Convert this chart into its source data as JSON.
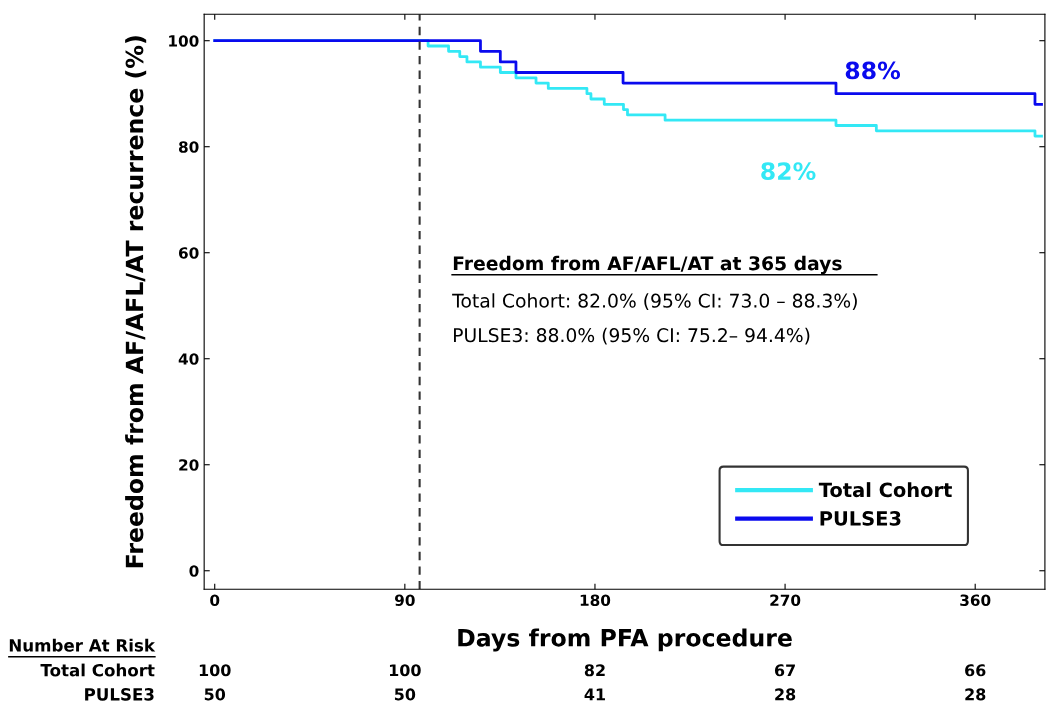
{
  "chart_data": {
    "type": "step",
    "xlabel": "Days from PFA procedure",
    "ylabel": "Freedom from AF/AFL/AT recurrence (%)",
    "series": [
      {
        "name": "Total Cohort",
        "color": "#33e8f5",
        "x": [
          0,
          101,
          110.7,
          116,
          119.4,
          125.8,
          135.2,
          142.6,
          152.1,
          157.9,
          176.2,
          178.1,
          184.4,
          193.5,
          195.4,
          213.2,
          294.1,
          313.2,
          388.3,
          391.4
        ],
        "values": [
          100,
          99,
          98,
          97,
          96,
          95,
          94,
          93,
          92,
          91,
          90,
          89,
          88,
          87,
          86,
          85,
          84,
          83,
          82,
          82
        ]
      },
      {
        "name": "PULSE3",
        "color": "#0a0aee",
        "x": [
          0,
          125.8,
          135.2,
          142.6,
          193.3,
          294.1,
          388.3,
          391.4
        ],
        "values": [
          100,
          98,
          96,
          94,
          92,
          90,
          88,
          88
        ]
      }
    ],
    "xlim": [
      -5,
      393
    ],
    "xticks": [
      0,
      90,
      180,
      270,
      360
    ],
    "ylim": [
      -3.5,
      105
    ],
    "yticks": [
      0,
      20,
      40,
      60,
      80,
      100
    ],
    "ref_lines": [
      {
        "axis": "x",
        "value": 97,
        "color": "#333333",
        "line_style": "dashed"
      }
    ],
    "legend": "bottom right",
    "grid": false,
    "annotations": [
      "Freedom from AF/AFL/AT at 365 days",
      "Total Cohort: 82.0% (95% CI: 73.0 – 88.3%)",
      "PULSE3: 88.0% (95% CI: 75.2– 94.4%)",
      "88%",
      "82%",
      "Number At Risk",
      "Total Cohort",
      "100",
      "100",
      "82",
      "67",
      "66",
      "PULSE3",
      "50",
      "50",
      "41",
      "28",
      "28"
    ]
  }
}
